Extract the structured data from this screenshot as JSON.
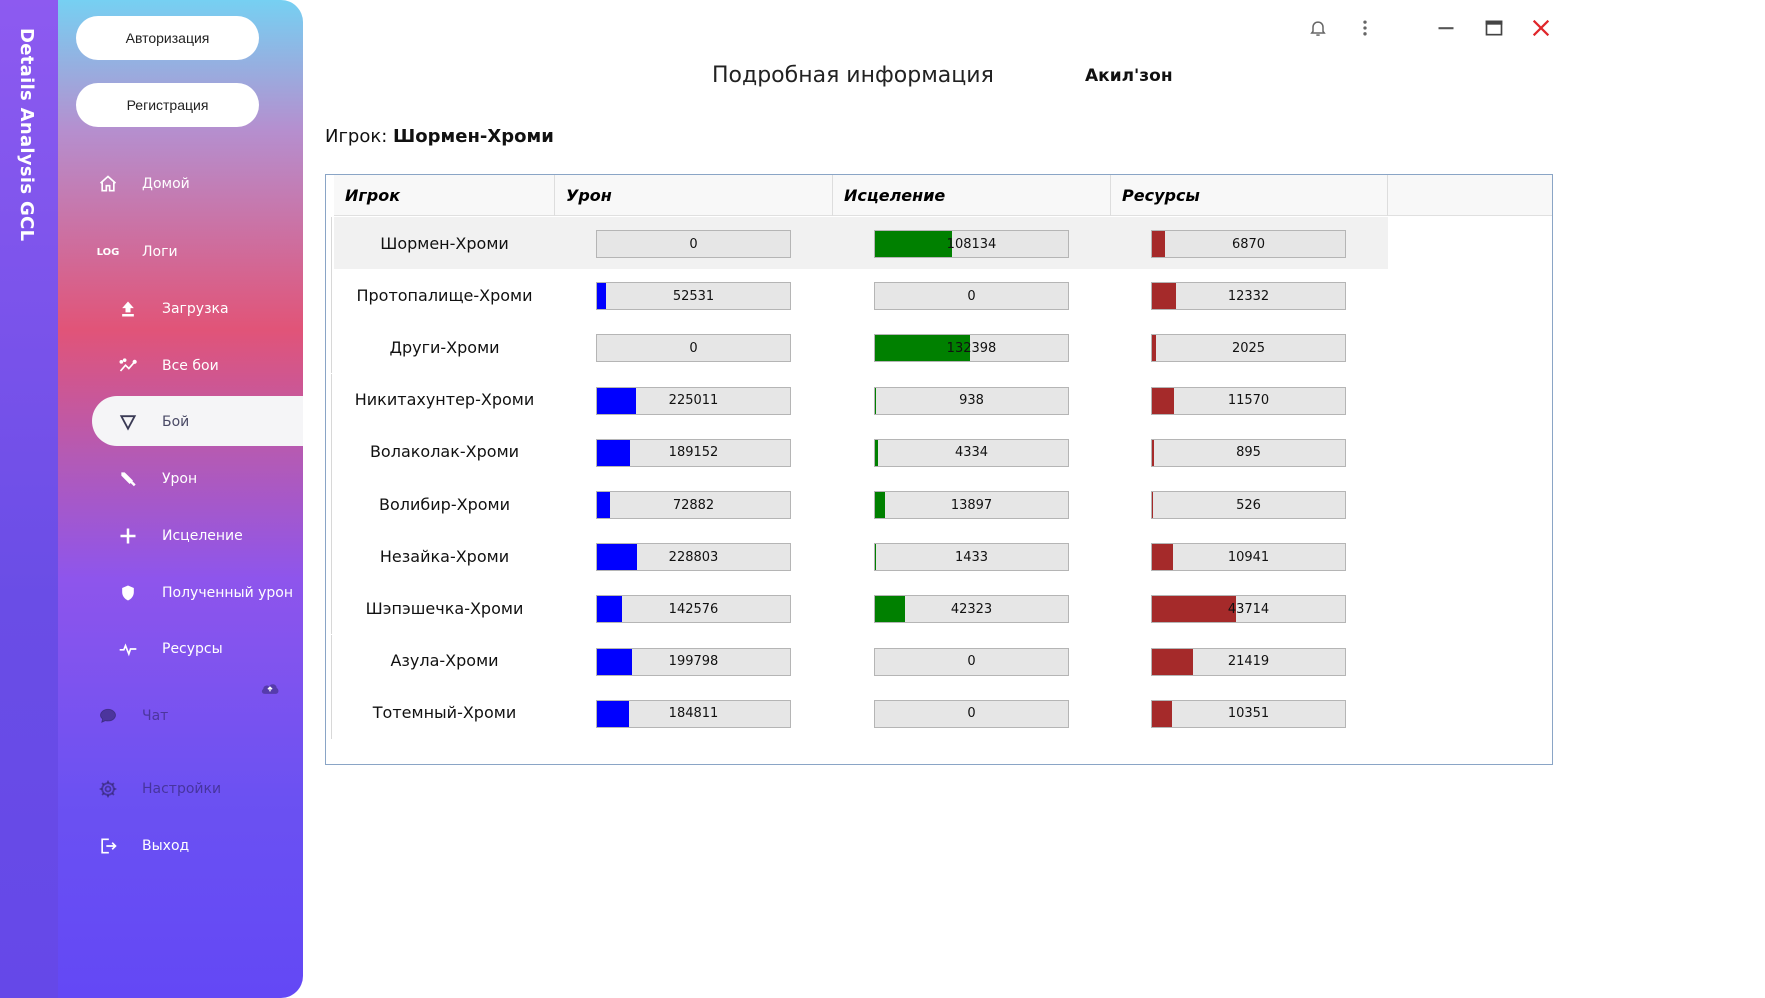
{
  "app": {
    "title": "Details Analysis GCL"
  },
  "sidebar": {
    "login_label": "Авторизация",
    "register_label": "Регистрация",
    "items": [
      {
        "label": "Домой",
        "icon": "home-icon"
      },
      {
        "label": "Логи",
        "icon": "log-icon",
        "icon_text": "LOG"
      },
      {
        "label": "Загрузка",
        "icon": "upload-icon"
      },
      {
        "label": "Все бои",
        "icon": "all-fights-icon"
      },
      {
        "label": "Бой",
        "icon": "triangle-down-icon"
      },
      {
        "label": "Урон",
        "icon": "sword-icon"
      },
      {
        "label": "Исцеление",
        "icon": "plus-icon"
      },
      {
        "label": "Полученный урон",
        "icon": "shield-icon"
      },
      {
        "label": "Ресурсы",
        "icon": "pulse-icon"
      },
      {
        "label": "Чат",
        "icon": "chat-icon"
      },
      {
        "label": "Настройки",
        "icon": "gear-icon"
      },
      {
        "label": "Выход",
        "icon": "logout-icon"
      }
    ]
  },
  "header": {
    "title": "Подробная информация",
    "hero": "Акил'зон",
    "player_prefix": "Игрок:",
    "player_name": "Шормен-Хроми"
  },
  "colors": {
    "damage": "#0000ff",
    "healing": "#008000",
    "resources": "#a52a2a",
    "close": "#e0262a"
  },
  "table": {
    "columns": [
      "Игрок",
      "Урон",
      "Исцеление",
      "Ресурсы"
    ],
    "max": {
      "damage": 1100000,
      "healing": 270000,
      "resources": 100000
    },
    "rows": [
      {
        "name": "Шормен-Хроми",
        "damage": 0,
        "healing": 108134,
        "resources": 6870
      },
      {
        "name": "Протопалище-Хроми",
        "damage": 52531,
        "healing": 0,
        "resources": 12332
      },
      {
        "name": "Други-Хроми",
        "damage": 0,
        "healing": 132398,
        "resources": 2025
      },
      {
        "name": "Никитахунтер-Хроми",
        "damage": 225011,
        "healing": 938,
        "resources": 11570
      },
      {
        "name": "Волаколак-Хроми",
        "damage": 189152,
        "healing": 4334,
        "resources": 895
      },
      {
        "name": "Волибир-Хроми",
        "damage": 72882,
        "healing": 13897,
        "resources": 526
      },
      {
        "name": "Незайка-Хроми",
        "damage": 228803,
        "healing": 1433,
        "resources": 10941
      },
      {
        "name": "Шэпэшечка-Хроми",
        "damage": 142576,
        "healing": 42323,
        "resources": 43714
      },
      {
        "name": "Азула-Хроми",
        "damage": 199798,
        "healing": 0,
        "resources": 21419
      },
      {
        "name": "Тотемный-Хроми",
        "damage": 184811,
        "healing": 0,
        "resources": 10351
      }
    ]
  }
}
